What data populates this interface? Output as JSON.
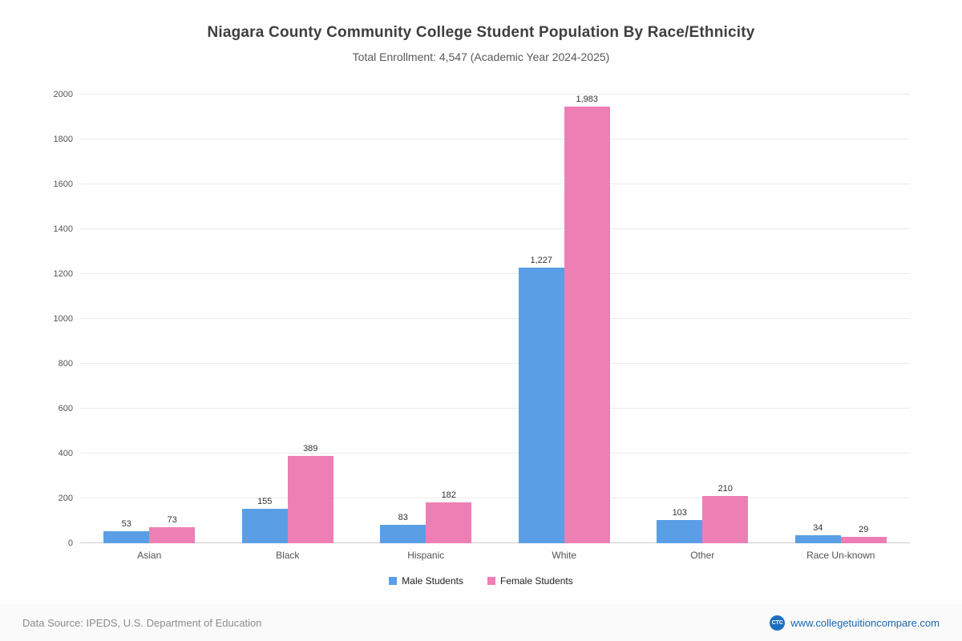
{
  "title": "Niagara County Community College Student Population By Race/Ethnicity",
  "subtitle": "Total Enrollment: 4,547 (Academic Year 2024-2025)",
  "footer": {
    "source": "Data Source: IPEDS, U.S. Department of Education",
    "website": "www.collegetuitioncompare.com",
    "logo_text": "CTC"
  },
  "colors": {
    "male_bar": "#5a9fe6",
    "female_bar": "#ee7fb5",
    "gridline": "#ebebeb",
    "link_blue": "#1767b3"
  },
  "chart_data": {
    "type": "bar",
    "title": "Niagara County Community College Student Population By Race/Ethnicity",
    "subtitle": "Total Enrollment: 4,547 (Academic Year 2024-2025)",
    "categories": [
      "Asian",
      "Black",
      "Hispanic",
      "White",
      "Other",
      "Race Un-known"
    ],
    "series": [
      {
        "name": "Male Students",
        "color": "#5a9fe6",
        "values": [
          53,
          155,
          83,
          1227,
          103,
          34
        ]
      },
      {
        "name": "Female Students",
        "color": "#ee7fb5",
        "values": [
          73,
          389,
          182,
          1983,
          210,
          29
        ]
      }
    ],
    "xlabel": "",
    "ylabel": "",
    "ylim": [
      0,
      2000
    ],
    "ytick_step": 200,
    "grid": true,
    "legend_position": "bottom"
  }
}
